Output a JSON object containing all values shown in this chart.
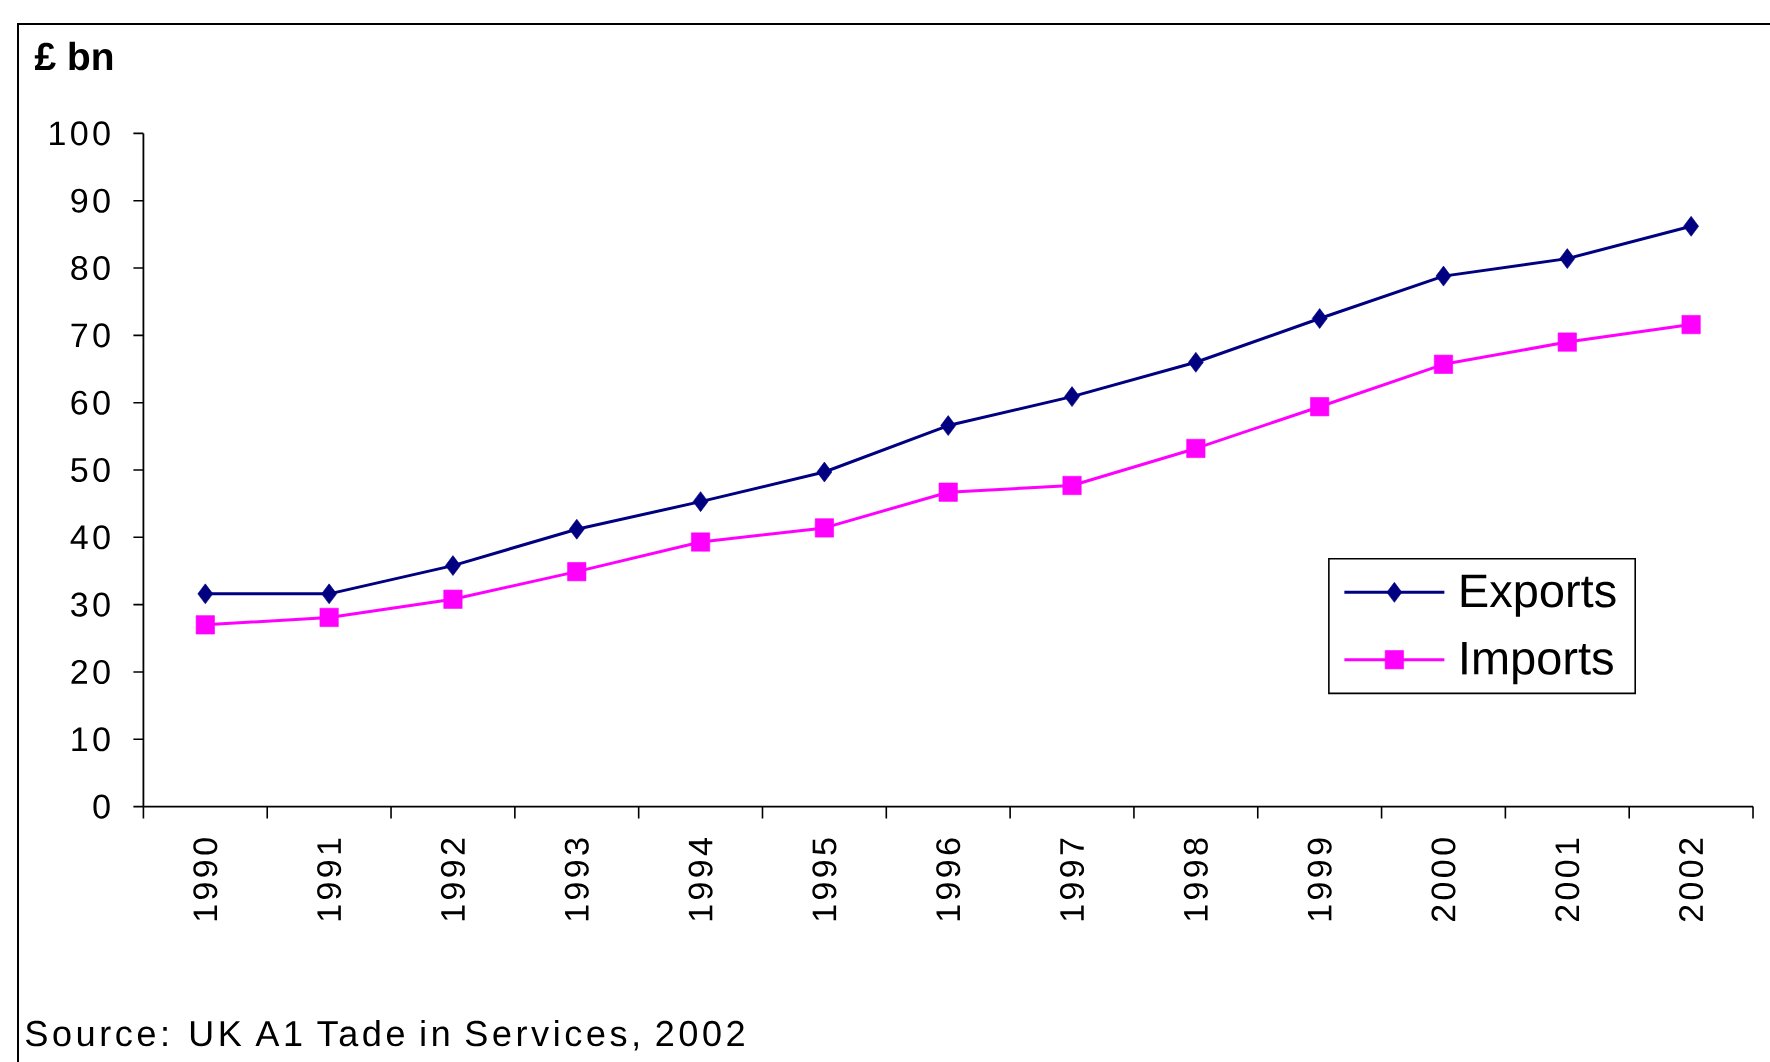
{
  "chart_data": {
    "type": "line",
    "ylabel": "£ bn",
    "annotations": [
      "Source: UK A1 Tade in Services, 2002"
    ],
    "categories": [
      "1990",
      "1991",
      "1992",
      "1993",
      "1994",
      "1995",
      "1996",
      "1997",
      "1998",
      "1999",
      "2000",
      "2001",
      "2002"
    ],
    "series": [
      {
        "name": "Exports",
        "color": "#000080",
        "marker": "diamond",
        "values": [
          31.6,
          31.6,
          35.8,
          41.2,
          45.3,
          49.7,
          56.6,
          60.9,
          66.0,
          72.5,
          78.8,
          81.4,
          86.2
        ]
      },
      {
        "name": "Imports",
        "color": "#ff00ff",
        "marker": "square",
        "values": [
          27.0,
          28.1,
          30.8,
          34.9,
          39.3,
          41.4,
          46.7,
          47.7,
          53.2,
          59.4,
          65.7,
          69.0,
          71.6
        ]
      }
    ],
    "ylim": [
      0,
      100
    ],
    "yticks": [
      0,
      10,
      20,
      30,
      40,
      50,
      60,
      70,
      80,
      90,
      100
    ],
    "legend": "right",
    "line_style": "solid"
  }
}
